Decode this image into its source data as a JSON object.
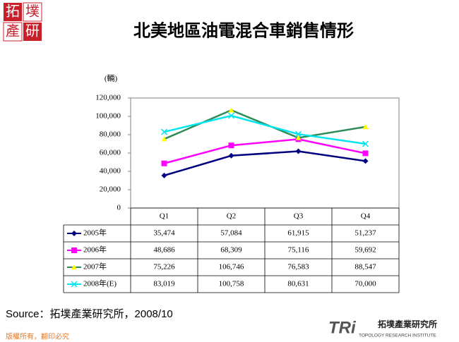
{
  "logo": [
    "拓",
    "墣",
    "產",
    "研"
  ],
  "chart_data": {
    "type": "line",
    "title": "北美地區油電混合車銷售情形",
    "y_label": "(輛)",
    "categories": [
      "Q1",
      "Q2",
      "Q3",
      "Q4"
    ],
    "ylim": [
      0,
      120000
    ],
    "yticks": [
      0,
      {
        "value": 20000,
        "label": "20,000"
      },
      {
        "value": 40000,
        "label": "40,000"
      },
      {
        "value": 60000,
        "label": "60,000"
      },
      {
        "value": 80000,
        "label": "80,000"
      },
      {
        "value": 100000,
        "label": "100,000"
      },
      {
        "value": 120000,
        "label": "120,000"
      }
    ],
    "grid": false,
    "series": [
      {
        "name": "2005年",
        "color": "#000080",
        "marker": "diamond",
        "marker_color": "#000080",
        "values": [
          35474,
          57084,
          61915,
          51237
        ],
        "value_labels": [
          "35,474",
          "57,084",
          "61,915",
          "51,237"
        ]
      },
      {
        "name": "2006年",
        "color": "#ff00ff",
        "marker": "square",
        "marker_color": "#ff00ff",
        "values": [
          48686,
          68309,
          75116,
          59692
        ],
        "value_labels": [
          "48,686",
          "68,309",
          "75,116",
          "59,692"
        ]
      },
      {
        "name": "2007年",
        "color": "#2e8b57",
        "marker": "triangle",
        "marker_color": "#ffff00",
        "values": [
          75226,
          106746,
          76583,
          88547
        ],
        "value_labels": [
          "75,226",
          "106,746",
          "76,583",
          "88,547"
        ]
      },
      {
        "name": "2008年(E)",
        "color": "#00e5ee",
        "marker": "x",
        "marker_color": "#00e5ee",
        "values": [
          83019,
          100758,
          80631,
          70000
        ],
        "value_labels": [
          "83,019",
          "100,758",
          "80,631",
          "70,000"
        ]
      }
    ]
  },
  "source": "Source：拓墣產業研究所，2008/10",
  "footer": "版權所有，翻印必究",
  "brand": {
    "mark": "TRi",
    "name": "拓墣產業研究所",
    "english": "TOPOLOGY RESEARCH INSTITUTE"
  }
}
